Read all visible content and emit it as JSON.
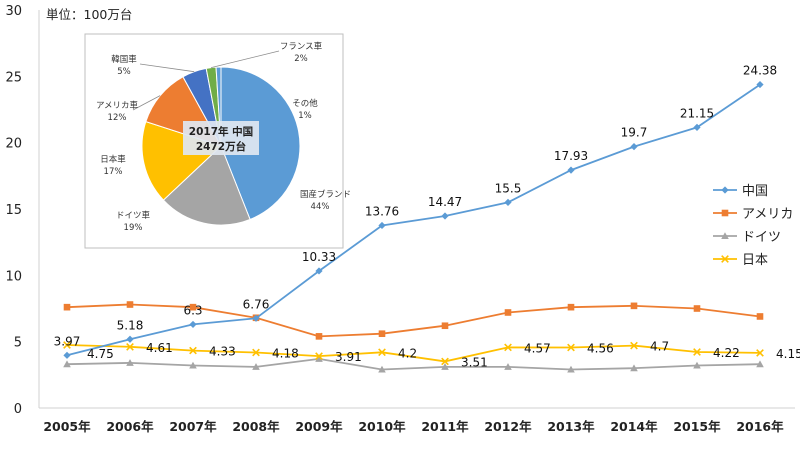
{
  "chart_data": [
    {
      "type": "line",
      "title": "",
      "unit_label": "単位：100万台",
      "xlabel": "",
      "ylabel": "",
      "ylim": [
        0,
        30
      ],
      "yticks": [
        0,
        5,
        10,
        15,
        20,
        25,
        30
      ],
      "grid": false,
      "legend_position": "right",
      "categories": [
        "2005年",
        "2006年",
        "2007年",
        "2008年",
        "2009年",
        "2010年",
        "2011年",
        "2012年",
        "2013年",
        "2014年",
        "2015年",
        "2016年"
      ],
      "series": [
        {
          "name": "中国",
          "color": "#5B9BD5",
          "marker": "diamond",
          "values": [
            3.97,
            5.18,
            6.3,
            6.76,
            10.33,
            13.76,
            14.47,
            15.5,
            17.93,
            19.7,
            21.15,
            24.38
          ],
          "labels": [
            "3.97",
            "5.18",
            "6.3",
            "6.76",
            "10.33",
            "13.76",
            "14.47",
            "15.5",
            "17.93",
            "19.7",
            "21.15",
            "24.38"
          ]
        },
        {
          "name": "アメリカ",
          "color": "#ED7D31",
          "marker": "square",
          "values": [
            7.6,
            7.8,
            7.6,
            6.8,
            5.4,
            5.6,
            6.2,
            7.2,
            7.6,
            7.7,
            7.5,
            6.9
          ],
          "labels": [
            "",
            "",
            "",
            "",
            "",
            "",
            "",
            "",
            "",
            "",
            "",
            ""
          ]
        },
        {
          "name": "ドイツ",
          "color": "#A5A5A5",
          "marker": "triangle",
          "values": [
            3.3,
            3.4,
            3.2,
            3.1,
            3.7,
            2.9,
            3.1,
            3.1,
            2.9,
            3.0,
            3.2,
            3.3
          ],
          "labels": [
            "",
            "",
            "",
            "",
            "",
            "",
            "",
            "",
            "",
            "",
            "",
            ""
          ]
        },
        {
          "name": "日本",
          "color": "#FFC000",
          "marker": "x",
          "values": [
            4.75,
            4.61,
            4.33,
            4.18,
            3.91,
            4.2,
            3.51,
            4.57,
            4.56,
            4.7,
            4.22,
            4.15
          ],
          "labels": [
            "4.75",
            "4.61",
            "4.33",
            "4.18",
            "3.91",
            "4.2",
            "3.51",
            "4.57",
            "4.56",
            "4.7",
            "4.22",
            "4.15"
          ]
        }
      ]
    },
    {
      "type": "pie",
      "center_title": "2017年 中国",
      "center_value": "2472万台",
      "slices": [
        {
          "name": "国産ブランド",
          "value": 44,
          "label": "44%",
          "color": "#5B9BD5"
        },
        {
          "name": "ドイツ車",
          "value": 19,
          "label": "19%",
          "color": "#A5A5A5"
        },
        {
          "name": "日本車",
          "value": 17,
          "label": "17%",
          "color": "#FFC000"
        },
        {
          "name": "アメリカ車",
          "value": 12,
          "label": "12%",
          "color": "#ED7D31"
        },
        {
          "name": "韓国車",
          "value": 5,
          "label": "5%",
          "color": "#4472C4"
        },
        {
          "name": "フランス車",
          "value": 2,
          "label": "2%",
          "color": "#70AD47"
        },
        {
          "name": "その他",
          "value": 1,
          "label": "1%",
          "color": "#5B9BD5"
        }
      ]
    }
  ]
}
